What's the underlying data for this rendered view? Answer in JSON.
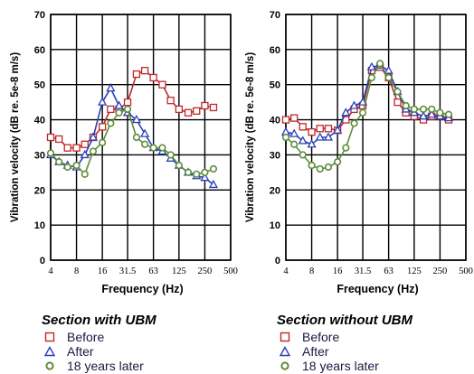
{
  "chart_data": [
    {
      "type": "line",
      "title": "Section with UBM",
      "xlabel": "Frequency (Hz)",
      "ylabel": "Vibration velocity (dB re. 5e-8 m/s)",
      "ylim": [
        0,
        70
      ],
      "yticks": [
        "0",
        "10",
        "20",
        "30",
        "40",
        "50",
        "60",
        "70"
      ],
      "xticks": [
        "4",
        "8",
        "16",
        "31.5",
        "63",
        "125",
        "250",
        "500"
      ],
      "x": [
        "4",
        "5",
        "6.3",
        "8",
        "10",
        "12.5",
        "16",
        "20",
        "25",
        "31.5",
        "40",
        "50",
        "63",
        "80",
        "100",
        "125",
        "160",
        "200",
        "250",
        "315"
      ],
      "grid": true,
      "legend": "below",
      "series": [
        {
          "name": "Before",
          "marker": "square",
          "color": "#c0282d",
          "values": [
            35,
            34.5,
            32,
            32,
            33,
            35,
            38,
            43,
            43,
            45,
            53,
            54,
            52,
            50,
            45.5,
            43,
            42,
            42.5,
            44,
            43.5
          ]
        },
        {
          "name": "After",
          "marker": "triangle",
          "color": "#2b3fb5",
          "values": [
            30,
            28,
            27,
            26.5,
            30,
            35,
            45,
            49,
            44,
            42,
            40,
            36,
            32,
            31,
            29,
            27,
            25,
            24,
            23.5,
            21.5
          ]
        },
        {
          "name": "18 years later",
          "marker": "circle",
          "color": "#5e8c3a",
          "values": [
            30.5,
            28,
            26.5,
            27,
            24.5,
            31,
            33.5,
            39,
            42,
            43,
            35,
            33,
            32,
            32,
            30,
            27,
            25,
            24.5,
            25,
            26
          ]
        }
      ]
    },
    {
      "type": "line",
      "title": "Section without UBM",
      "xlabel": "Frequency (Hz)",
      "ylabel": "Vibration velocity (dB re. 5e-8 m/s)",
      "ylim": [
        0,
        70
      ],
      "yticks": [
        "0",
        "10",
        "20",
        "30",
        "40",
        "50",
        "60",
        "70"
      ],
      "xticks": [
        "4",
        "8",
        "16",
        "31.5",
        "63",
        "125",
        "250",
        "500"
      ],
      "x": [
        "4",
        "5",
        "6.3",
        "8",
        "10",
        "12.5",
        "16",
        "20",
        "25",
        "31.5",
        "40",
        "50",
        "63",
        "80",
        "100",
        "125",
        "160",
        "200",
        "250",
        "315"
      ],
      "grid": true,
      "legend": "below",
      "series": [
        {
          "name": "Before",
          "marker": "square",
          "color": "#c0282d",
          "values": [
            40,
            40.5,
            38,
            36.5,
            37.5,
            37.5,
            37,
            40,
            43,
            44,
            54,
            55,
            52,
            45,
            42,
            41,
            40,
            41,
            41,
            40
          ]
        },
        {
          "name": "After",
          "marker": "triangle",
          "color": "#2b3fb5",
          "values": [
            36.5,
            36,
            34,
            33,
            35,
            35,
            37,
            42,
            44,
            45,
            55,
            55.5,
            54,
            48,
            43,
            42,
            41,
            41.5,
            41,
            40.5
          ]
        },
        {
          "name": "18 years later",
          "marker": "circle",
          "color": "#5e8c3a",
          "values": [
            35,
            33,
            30,
            27,
            26,
            26.5,
            28,
            32,
            39,
            42,
            52,
            56,
            52,
            48,
            44,
            43,
            43,
            43,
            42,
            41.5
          ]
        }
      ]
    }
  ],
  "legends": [
    {
      "title": "Section with UBM",
      "items": [
        "Before",
        "After",
        "18 years later"
      ]
    },
    {
      "title": "Section without UBM",
      "items": [
        "Before",
        "After",
        "18 years later"
      ]
    }
  ],
  "axis_text": [
    {
      "xlabel": "Frequency (Hz)",
      "ylabel": "Vibration velocity (dB re. 5e-8 m/s)"
    },
    {
      "xlabel": "Frequency (Hz)",
      "ylabel": "Vibration velocity (dB re. 5e-8 m/s)"
    }
  ]
}
